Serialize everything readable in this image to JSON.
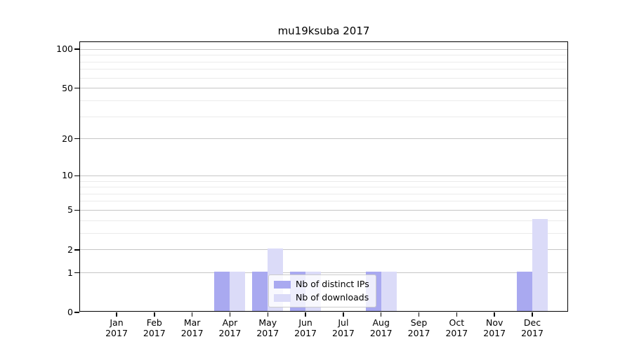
{
  "title": "mu19ksuba 2017",
  "colors": {
    "distinct_ips": "#a9a9f0",
    "downloads": "#dbdbf8",
    "grid_major": "#c6c6c6",
    "grid_minor": "#ebebeb",
    "axis": "#000000",
    "legend_border": "#cccccc"
  },
  "legend": {
    "items": [
      {
        "key": "distinct_ips",
        "label": "Nb of distinct IPs"
      },
      {
        "key": "downloads",
        "label": "Nb of downloads"
      }
    ]
  },
  "axes": {
    "y_major_ticks": [
      0,
      1,
      2,
      5,
      10,
      20,
      50,
      100
    ],
    "y_minor_ticks": [
      3,
      4,
      6,
      7,
      8,
      9,
      30,
      40,
      60,
      70,
      80,
      90
    ],
    "x_tick_months": [
      "Jan",
      "Feb",
      "Mar",
      "Apr",
      "May",
      "Jun",
      "Jul",
      "Aug",
      "Sep",
      "Oct",
      "Nov",
      "Dec"
    ],
    "x_tick_year": "2017"
  },
  "chart_data": {
    "type": "bar",
    "title": "mu19ksuba 2017",
    "categories": [
      "Jan 2017",
      "Feb 2017",
      "Mar 2017",
      "Apr 2017",
      "May 2017",
      "Jun 2017",
      "Jul 2017",
      "Aug 2017",
      "Sep 2017",
      "Oct 2017",
      "Nov 2017",
      "Dec 2017"
    ],
    "series": [
      {
        "name": "Nb of distinct IPs",
        "color": "#a9a9f0",
        "values": [
          0,
          0,
          0,
          1,
          1,
          1,
          0,
          1,
          0,
          0,
          0,
          1
        ]
      },
      {
        "name": "Nb of downloads",
        "color": "#dbdbf8",
        "values": [
          0,
          0,
          0,
          1,
          2,
          1,
          0,
          1,
          0,
          0,
          0,
          4
        ]
      }
    ],
    "yscale": "log1p",
    "yticks": [
      0,
      1,
      2,
      5,
      10,
      20,
      50,
      100
    ],
    "ylim": [
      0,
      113
    ],
    "grid": true,
    "legend_position": "lower center inside"
  }
}
